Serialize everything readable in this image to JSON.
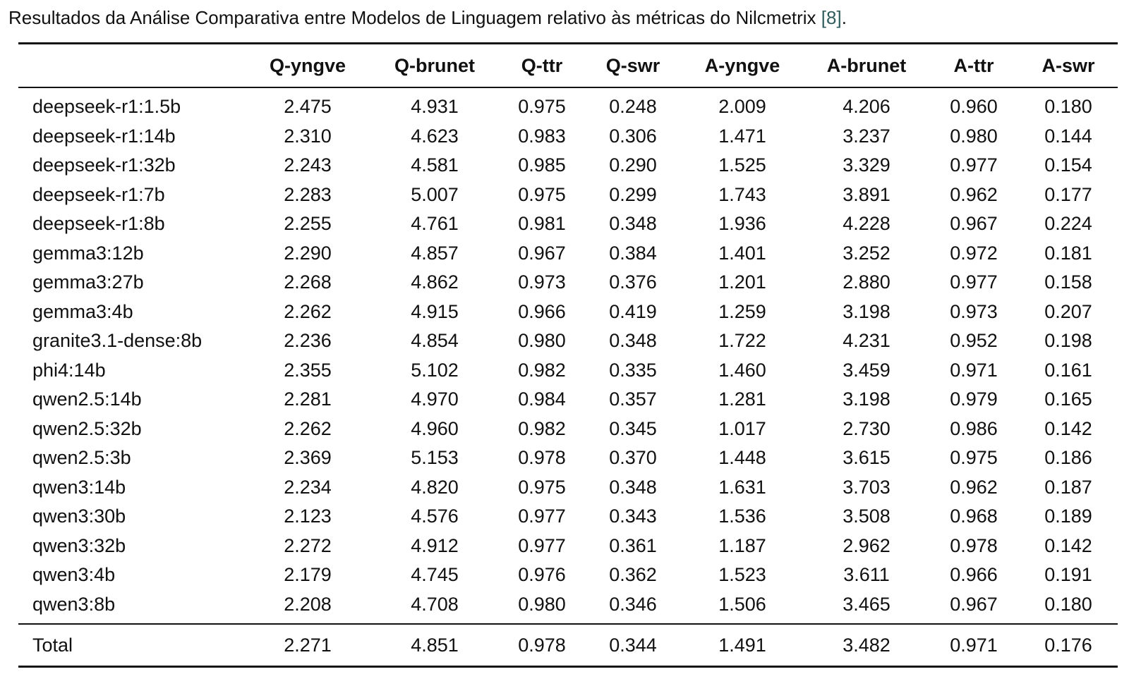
{
  "caption": {
    "text_before": "Resultados da Análise Comparativa entre Modelos de Linguagem relativo às métricas do Nilcmetrix ",
    "citation": "[8]",
    "text_after": "."
  },
  "table": {
    "headers": [
      "",
      "Q-yngve",
      "Q-brunet",
      "Q-ttr",
      "Q-swr",
      "A-yngve",
      "A-brunet",
      "A-ttr",
      "A-swr"
    ],
    "rows": [
      [
        "deepseek-r1:1.5b",
        "2.475",
        "4.931",
        "0.975",
        "0.248",
        "2.009",
        "4.206",
        "0.960",
        "0.180"
      ],
      [
        "deepseek-r1:14b",
        "2.310",
        "4.623",
        "0.983",
        "0.306",
        "1.471",
        "3.237",
        "0.980",
        "0.144"
      ],
      [
        "deepseek-r1:32b",
        "2.243",
        "4.581",
        "0.985",
        "0.290",
        "1.525",
        "3.329",
        "0.977",
        "0.154"
      ],
      [
        "deepseek-r1:7b",
        "2.283",
        "5.007",
        "0.975",
        "0.299",
        "1.743",
        "3.891",
        "0.962",
        "0.177"
      ],
      [
        "deepseek-r1:8b",
        "2.255",
        "4.761",
        "0.981",
        "0.348",
        "1.936",
        "4.228",
        "0.967",
        "0.224"
      ],
      [
        "gemma3:12b",
        "2.290",
        "4.857",
        "0.967",
        "0.384",
        "1.401",
        "3.252",
        "0.972",
        "0.181"
      ],
      [
        "gemma3:27b",
        "2.268",
        "4.862",
        "0.973",
        "0.376",
        "1.201",
        "2.880",
        "0.977",
        "0.158"
      ],
      [
        "gemma3:4b",
        "2.262",
        "4.915",
        "0.966",
        "0.419",
        "1.259",
        "3.198",
        "0.973",
        "0.207"
      ],
      [
        "granite3.1-dense:8b",
        "2.236",
        "4.854",
        "0.980",
        "0.348",
        "1.722",
        "4.231",
        "0.952",
        "0.198"
      ],
      [
        "phi4:14b",
        "2.355",
        "5.102",
        "0.982",
        "0.335",
        "1.460",
        "3.459",
        "0.971",
        "0.161"
      ],
      [
        "qwen2.5:14b",
        "2.281",
        "4.970",
        "0.984",
        "0.357",
        "1.281",
        "3.198",
        "0.979",
        "0.165"
      ],
      [
        "qwen2.5:32b",
        "2.262",
        "4.960",
        "0.982",
        "0.345",
        "1.017",
        "2.730",
        "0.986",
        "0.142"
      ],
      [
        "qwen2.5:3b",
        "2.369",
        "5.153",
        "0.978",
        "0.370",
        "1.448",
        "3.615",
        "0.975",
        "0.186"
      ],
      [
        "qwen3:14b",
        "2.234",
        "4.820",
        "0.975",
        "0.348",
        "1.631",
        "3.703",
        "0.962",
        "0.187"
      ],
      [
        "qwen3:30b",
        "2.123",
        "4.576",
        "0.977",
        "0.343",
        "1.536",
        "3.508",
        "0.968",
        "0.189"
      ],
      [
        "qwen3:32b",
        "2.272",
        "4.912",
        "0.977",
        "0.361",
        "1.187",
        "2.962",
        "0.978",
        "0.142"
      ],
      [
        "qwen3:4b",
        "2.179",
        "4.745",
        "0.976",
        "0.362",
        "1.523",
        "3.611",
        "0.966",
        "0.191"
      ],
      [
        "qwen3:8b",
        "2.208",
        "4.708",
        "0.980",
        "0.346",
        "1.506",
        "3.465",
        "0.967",
        "0.180"
      ]
    ],
    "total": [
      "Total",
      "2.271",
      "4.851",
      "0.978",
      "0.344",
      "1.491",
      "3.482",
      "0.971",
      "0.176"
    ]
  }
}
